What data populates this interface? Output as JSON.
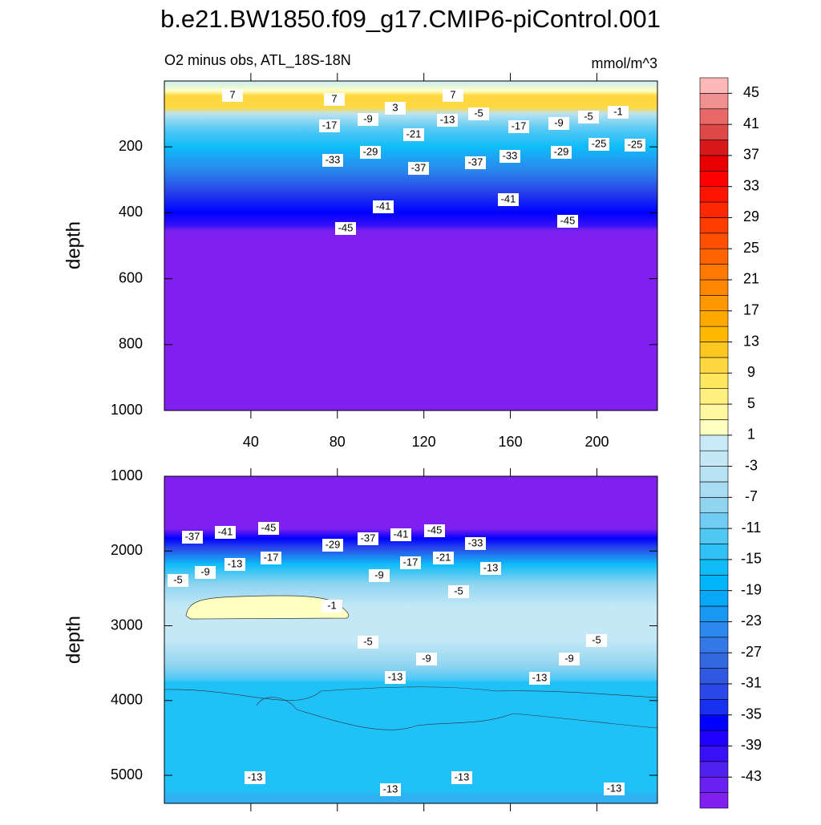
{
  "chart_data": [
    {
      "type": "contour",
      "title": "b.e21.BW1850.f09_g17.CMIP6-piControl.001",
      "subtitle": "O2 minus obs, ATL_18S-18N",
      "units": "mmol/m^3",
      "ylabel": "depth",
      "xlim": [
        0,
        228
      ],
      "xticks": [
        40,
        80,
        120,
        160,
        200
      ],
      "ylim": [
        0,
        1000
      ],
      "yticks": [
        200,
        400,
        600,
        800,
        1000
      ],
      "contour_labels": [
        7,
        7,
        3,
        7,
        -5,
        -5,
        -1,
        -17,
        -9,
        -13,
        -17,
        -9,
        -21,
        -29,
        -33,
        -37,
        -37,
        -33,
        -29,
        -25,
        -25,
        -41,
        -41,
        -45,
        -45
      ]
    },
    {
      "type": "contour",
      "ylabel": "depth",
      "xlim": [
        0,
        228
      ],
      "ylim": [
        1000,
        5375
      ],
      "yticks": [
        1000,
        2000,
        3000,
        4000,
        5000
      ],
      "contour_labels": [
        -37,
        -41,
        -45,
        -29,
        -37,
        -41,
        -45,
        -33,
        -13,
        -17,
        -17,
        -21,
        -9,
        -5,
        -9,
        -13,
        -5,
        -1,
        -5,
        -5,
        -9,
        -9,
        -13,
        -13,
        -13,
        -13,
        -13,
        -13
      ]
    }
  ],
  "colorbar": {
    "levels_range": [
      -45,
      45
    ],
    "ticks": [
      45,
      41,
      37,
      33,
      29,
      25,
      21,
      17,
      13,
      9,
      5,
      1,
      -3,
      -7,
      -11,
      -15,
      -19,
      -23,
      -27,
      -31,
      -35,
      -39,
      -43
    ],
    "colors": [
      "#8020f0",
      "#6a20f0",
      "#5020f0",
      "#3a10f8",
      "#1f00ff",
      "#0000ff",
      "#1830f0",
      "#2a48e8",
      "#3058e0",
      "#3468e0",
      "#3478e8",
      "#2a88ee",
      "#1898f2",
      "#08a8f8",
      "#00b4fa",
      "#10bcf8",
      "#30c2f6",
      "#50c8f4",
      "#70ccf2",
      "#90d4f0",
      "#a8dcf2",
      "#b8e2f4",
      "#c4e8f6",
      "#c8eaf8",
      "#ffffc0",
      "#fff8a0",
      "#fff080",
      "#ffe860",
      "#ffd840",
      "#ffc820",
      "#ffb800",
      "#ffa800",
      "#ff9800",
      "#ff8800",
      "#ff7800",
      "#ff6400",
      "#ff5000",
      "#ff3c00",
      "#ff2800",
      "#ff1400",
      "#ff0000",
      "#e80000",
      "#d81818",
      "#e04848",
      "#e86868",
      "#f09090",
      "#ffb8b8"
    ]
  }
}
